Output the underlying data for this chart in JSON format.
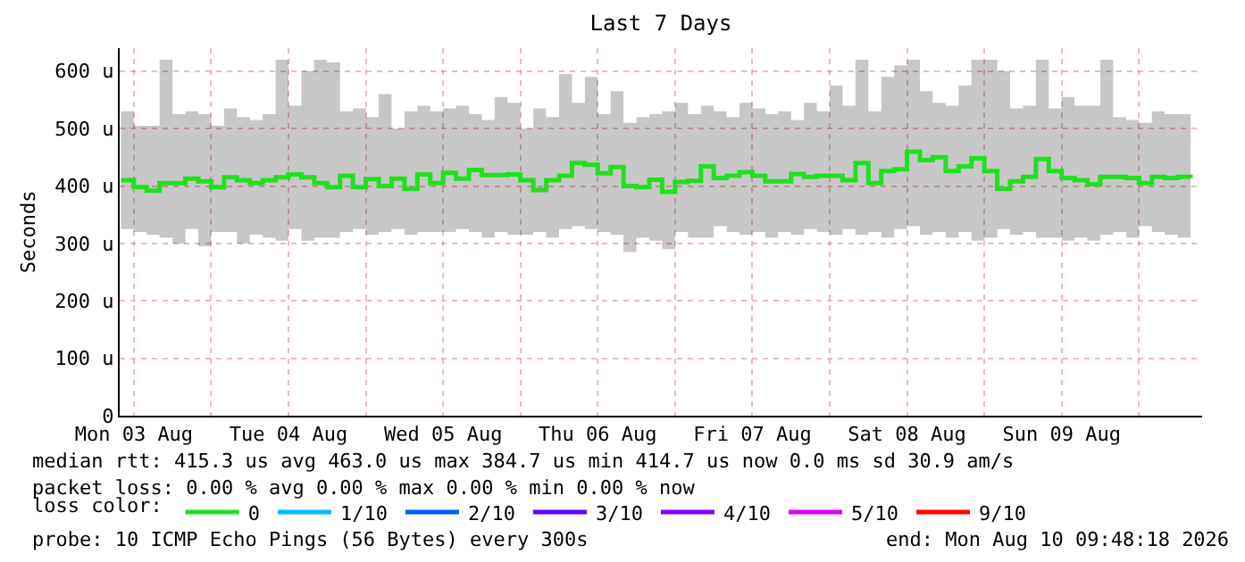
{
  "chart_data": {
    "type": "step",
    "title": "Last 7 Days",
    "ylabel": "Seconds",
    "legend_title": "loss color:",
    "legend": "bottom",
    "grid": true,
    "marker": "none",
    "line_style": "solid",
    "xlim": [
      "2026-08-03T09:48",
      "2026-08-10T09:48"
    ],
    "xticks": [
      {
        "value": "2026-08-03T12:00",
        "label": "Mon 03 Aug"
      },
      {
        "value": "2026-08-04T00:00",
        "label": null
      },
      {
        "value": "2026-08-04T12:00",
        "label": "Tue 04 Aug"
      },
      {
        "value": "2026-08-05T00:00",
        "label": null
      },
      {
        "value": "2026-08-05T12:00",
        "label": "Wed 05 Aug"
      },
      {
        "value": "2026-08-06T00:00",
        "label": null
      },
      {
        "value": "2026-08-06T12:00",
        "label": "Thu 06 Aug"
      },
      {
        "value": "2026-08-07T00:00",
        "label": null
      },
      {
        "value": "2026-08-07T12:00",
        "label": "Fri 07 Aug"
      },
      {
        "value": "2026-08-08T00:00",
        "label": null
      },
      {
        "value": "2026-08-08T12:00",
        "label": "Sat 08 Aug"
      },
      {
        "value": "2026-08-09T00:00",
        "label": null
      },
      {
        "value": "2026-08-09T12:00",
        "label": "Sun 09 Aug"
      },
      {
        "value": "2026-08-10T00:00",
        "label": null
      }
    ],
    "ylim": [
      0,
      640
    ],
    "yticks": [
      0,
      {
        "value": 100,
        "label": "100 u"
      },
      {
        "value": 200,
        "label": "200 u"
      },
      {
        "value": 300,
        "label": "300 u"
      },
      {
        "value": 400,
        "label": "400 u"
      },
      {
        "value": 500,
        "label": "500 u"
      },
      {
        "value": 600,
        "label": "600 u"
      }
    ],
    "x": [
      "2026-08-03T10:00",
      "2026-08-03T12:00",
      "2026-08-03T14:00",
      "2026-08-03T16:00",
      "2026-08-03T18:00",
      "2026-08-03T20:00",
      "2026-08-03T22:00",
      "2026-08-04T00:00",
      "2026-08-04T02:00",
      "2026-08-04T04:00",
      "2026-08-04T06:00",
      "2026-08-04T08:00",
      "2026-08-04T10:00",
      "2026-08-04T12:00",
      "2026-08-04T14:00",
      "2026-08-04T16:00",
      "2026-08-04T18:00",
      "2026-08-04T20:00",
      "2026-08-04T22:00",
      "2026-08-05T00:00",
      "2026-08-05T02:00",
      "2026-08-05T04:00",
      "2026-08-05T06:00",
      "2026-08-05T08:00",
      "2026-08-05T10:00",
      "2026-08-05T12:00",
      "2026-08-05T14:00",
      "2026-08-05T16:00",
      "2026-08-05T18:00",
      "2026-08-05T20:00",
      "2026-08-05T22:00",
      "2026-08-06T00:00",
      "2026-08-06T02:00",
      "2026-08-06T04:00",
      "2026-08-06T06:00",
      "2026-08-06T08:00",
      "2026-08-06T10:00",
      "2026-08-06T12:00",
      "2026-08-06T14:00",
      "2026-08-06T16:00",
      "2026-08-06T18:00",
      "2026-08-06T20:00",
      "2026-08-06T22:00",
      "2026-08-07T00:00",
      "2026-08-07T02:00",
      "2026-08-07T04:00",
      "2026-08-07T06:00",
      "2026-08-07T08:00",
      "2026-08-07T10:00",
      "2026-08-07T12:00",
      "2026-08-07T14:00",
      "2026-08-07T16:00",
      "2026-08-07T18:00",
      "2026-08-07T20:00",
      "2026-08-07T22:00",
      "2026-08-08T00:00",
      "2026-08-08T02:00",
      "2026-08-08T04:00",
      "2026-08-08T06:00",
      "2026-08-08T08:00",
      "2026-08-08T10:00",
      "2026-08-08T12:00",
      "2026-08-08T14:00",
      "2026-08-08T16:00",
      "2026-08-08T18:00",
      "2026-08-08T20:00",
      "2026-08-08T22:00",
      "2026-08-09T00:00",
      "2026-08-09T02:00",
      "2026-08-09T04:00",
      "2026-08-09T06:00",
      "2026-08-09T08:00",
      "2026-08-09T10:00",
      "2026-08-09T12:00",
      "2026-08-09T14:00",
      "2026-08-09T16:00",
      "2026-08-09T18:00",
      "2026-08-09T20:00",
      "2026-08-09T22:00",
      "2026-08-10T00:00",
      "2026-08-10T02:00",
      "2026-08-10T04:00",
      "2026-08-10T06:00",
      "2026-08-10T08:00"
    ],
    "series": [
      {
        "name": "0",
        "color": "#20e020",
        "values": [
          410,
          398,
          392,
          405,
          405,
          413,
          408,
          398,
          415,
          410,
          405,
          410,
          415,
          420,
          415,
          405,
          398,
          418,
          398,
          412,
          400,
          413,
          395,
          420,
          405,
          423,
          413,
          428,
          419,
          419,
          420,
          410,
          393,
          410,
          418,
          440,
          437,
          422,
          433,
          400,
          398,
          411,
          390,
          407,
          409,
          434,
          414,
          418,
          424,
          418,
          408,
          408,
          421,
          416,
          418,
          418,
          410,
          440,
          405,
          426,
          429,
          460,
          445,
          450,
          426,
          434,
          448,
          426,
          395,
          408,
          416,
          447,
          426,
          414,
          410,
          403,
          416,
          416,
          414,
          405,
          416,
          414,
          416,
          414
        ],
        "lower": [
          325,
          320,
          315,
          310,
          300,
          325,
          295,
          320,
          320,
          300,
          315,
          310,
          305,
          325,
          305,
          310,
          310,
          320,
          325,
          315,
          320,
          325,
          315,
          320,
          320,
          320,
          325,
          320,
          310,
          320,
          315,
          315,
          320,
          310,
          325,
          330,
          325,
          320,
          315,
          285,
          310,
          305,
          290,
          320,
          310,
          310,
          330,
          320,
          315,
          320,
          310,
          320,
          315,
          325,
          320,
          315,
          325,
          315,
          320,
          310,
          325,
          330,
          315,
          320,
          310,
          320,
          305,
          310,
          325,
          315,
          320,
          310,
          310,
          305,
          310,
          305,
          315,
          320,
          310,
          330,
          320,
          315,
          310,
          325
        ],
        "upper": [
          530,
          505,
          505,
          620,
          525,
          530,
          525,
          505,
          535,
          520,
          515,
          525,
          620,
          540,
          600,
          620,
          615,
          530,
          535,
          520,
          560,
          500,
          530,
          540,
          530,
          535,
          540,
          525,
          515,
          555,
          545,
          500,
          535,
          520,
          595,
          545,
          590,
          525,
          565,
          510,
          520,
          525,
          530,
          545,
          525,
          540,
          530,
          520,
          545,
          535,
          525,
          530,
          515,
          545,
          530,
          575,
          540,
          620,
          530,
          590,
          610,
          620,
          565,
          545,
          540,
          575,
          620,
          620,
          600,
          535,
          540,
          620,
          535,
          555,
          540,
          540,
          620,
          520,
          515,
          510,
          530,
          525,
          525,
          530
        ]
      },
      {
        "name": "1/10",
        "color": "#00b8ff",
        "values": [
          null,
          null,
          null,
          null,
          null,
          null,
          null,
          null,
          null,
          null,
          null,
          null,
          null,
          null,
          null,
          null,
          null,
          null,
          null,
          null,
          null,
          null,
          null,
          null,
          null,
          null,
          null,
          null,
          null,
          null,
          null,
          null,
          null,
          null,
          null,
          null,
          null,
          null,
          null,
          null,
          null,
          null,
          null,
          null,
          null,
          null,
          null,
          null,
          null,
          null,
          null,
          null,
          null,
          null,
          null,
          null,
          null,
          null,
          null,
          null,
          null,
          null,
          null,
          null,
          null,
          null,
          null,
          null,
          null,
          null,
          null,
          null,
          null,
          null,
          null,
          null,
          null,
          null,
          null,
          null,
          null,
          null,
          null,
          null
        ]
      },
      {
        "name": "2/10",
        "color": "#0059ff",
        "values": [
          null,
          null,
          null,
          null,
          null,
          null,
          null,
          null,
          null,
          null,
          null,
          null,
          null,
          null,
          null,
          null,
          null,
          null,
          null,
          null,
          null,
          null,
          null,
          null,
          null,
          null,
          null,
          null,
          null,
          null,
          null,
          null,
          null,
          null,
          null,
          null,
          null,
          null,
          null,
          null,
          null,
          null,
          null,
          null,
          null,
          null,
          null,
          null,
          null,
          null,
          null,
          null,
          null,
          null,
          null,
          null,
          null,
          null,
          null,
          null,
          null,
          null,
          null,
          null,
          null,
          null,
          null,
          null,
          null,
          null,
          null,
          null,
          null,
          null,
          null,
          null,
          null,
          null,
          null,
          null,
          null,
          null,
          null,
          null
        ]
      },
      {
        "name": "3/10",
        "color": "#5e00ff",
        "values": [
          null,
          null,
          null,
          null,
          null,
          null,
          null,
          null,
          null,
          null,
          null,
          null,
          null,
          null,
          null,
          null,
          null,
          null,
          null,
          null,
          null,
          null,
          null,
          null,
          null,
          null,
          null,
          null,
          null,
          null,
          null,
          null,
          null,
          null,
          null,
          null,
          null,
          null,
          null,
          null,
          null,
          null,
          null,
          null,
          null,
          null,
          null,
          null,
          null,
          null,
          null,
          null,
          null,
          null,
          null,
          null,
          null,
          null,
          null,
          null,
          null,
          null,
          null,
          null,
          null,
          null,
          null,
          null,
          null,
          null,
          null,
          null,
          null,
          null,
          null,
          null,
          null,
          null,
          null,
          null,
          null,
          null,
          null,
          null
        ]
      },
      {
        "name": "4/10",
        "color": "#7e00ff",
        "values": [
          null,
          null,
          null,
          null,
          null,
          null,
          null,
          null,
          null,
          null,
          null,
          null,
          null,
          null,
          null,
          null,
          null,
          null,
          null,
          null,
          null,
          null,
          null,
          null,
          null,
          null,
          null,
          null,
          null,
          null,
          null,
          null,
          null,
          null,
          null,
          null,
          null,
          null,
          null,
          null,
          null,
          null,
          null,
          null,
          null,
          null,
          null,
          null,
          null,
          null,
          null,
          null,
          null,
          null,
          null,
          null,
          null,
          null,
          null,
          null,
          null,
          null,
          null,
          null,
          null,
          null,
          null,
          null,
          null,
          null,
          null,
          null,
          null,
          null,
          null,
          null,
          null,
          null,
          null,
          null,
          null,
          null,
          null,
          null
        ]
      },
      {
        "name": "5/10",
        "color": "#dd00ff",
        "values": [
          null,
          null,
          null,
          null,
          null,
          null,
          null,
          null,
          null,
          null,
          null,
          null,
          null,
          null,
          null,
          null,
          null,
          null,
          null,
          null,
          null,
          null,
          null,
          null,
          null,
          null,
          null,
          null,
          null,
          null,
          null,
          null,
          null,
          null,
          null,
          null,
          null,
          null,
          null,
          null,
          null,
          null,
          null,
          null,
          null,
          null,
          null,
          null,
          null,
          null,
          null,
          null,
          null,
          null,
          null,
          null,
          null,
          null,
          null,
          null,
          null,
          null,
          null,
          null,
          null,
          null,
          null,
          null,
          null,
          null,
          null,
          null,
          null,
          null,
          null,
          null,
          null,
          null,
          null,
          null,
          null,
          null,
          null,
          null
        ]
      },
      {
        "name": "9/10",
        "color": "#ff0000",
        "values": [
          null,
          null,
          null,
          null,
          null,
          null,
          null,
          null,
          null,
          null,
          null,
          null,
          null,
          null,
          null,
          null,
          null,
          null,
          null,
          null,
          null,
          null,
          null,
          null,
          null,
          null,
          null,
          null,
          null,
          null,
          null,
          null,
          null,
          null,
          null,
          null,
          null,
          null,
          null,
          null,
          null,
          null,
          null,
          null,
          null,
          null,
          null,
          null,
          null,
          null,
          null,
          null,
          null,
          null,
          null,
          null,
          null,
          null,
          null,
          null,
          null,
          null,
          null,
          null,
          null,
          null,
          null,
          null,
          null,
          null,
          null,
          null,
          null,
          null,
          null,
          null,
          null,
          null,
          null,
          null,
          null,
          null,
          null,
          null
        ]
      }
    ],
    "annotations": [
      "median rtt: 415.3 us avg 463.0 us max 384.7 us min 414.7 us now 0.0 ms sd 30.9 am/s",
      "packet loss: 0.00 % avg 0.00 % max 0.00 % min 0.00 % now",
      "probe: 10 ICMP Echo Pings (56 Bytes) every 300s",
      "end: Mon Aug 10 09:48:18 2026"
    ]
  }
}
